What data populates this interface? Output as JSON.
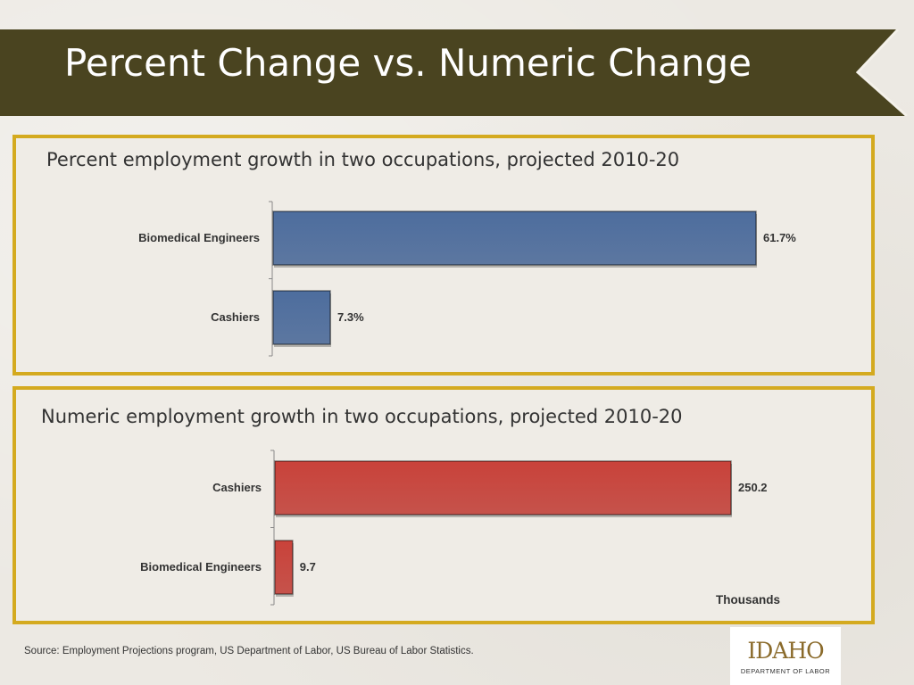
{
  "slide": {
    "title": "Percent Change vs. Numeric Change",
    "source": "Source: Employment Projections  program, US Department of Labor, US Bureau of Labor Statistics.",
    "logo_text": "IDAHO",
    "logo_subtext": "DEPARTMENT OF LABOR"
  },
  "colors": {
    "banner": "#4a4420",
    "panel_border": "#d4aa1f",
    "blue_bar": "#4d6d9e",
    "red_bar": "#c9423a"
  },
  "chart_data": [
    {
      "type": "bar",
      "orientation": "horizontal",
      "title": "Percent employment growth in two occupations, projected 2010-20",
      "categories": [
        "Biomedical Engineers",
        "Cashiers"
      ],
      "values": [
        61.7,
        7.3
      ],
      "value_labels": [
        "61.7%",
        "7.3%"
      ],
      "unit_label": "",
      "xlim": [
        0,
        61.7
      ],
      "color": "#4d6d9e"
    },
    {
      "type": "bar",
      "orientation": "horizontal",
      "title": "Numeric employment growth in two occupations, projected 2010-20",
      "categories": [
        "Cashiers",
        "Biomedical Engineers"
      ],
      "values": [
        250.2,
        9.7
      ],
      "value_labels": [
        "250.2",
        "9.7"
      ],
      "unit_label": "Thousands",
      "xlim": [
        0,
        250.2
      ],
      "color": "#c9423a"
    }
  ]
}
